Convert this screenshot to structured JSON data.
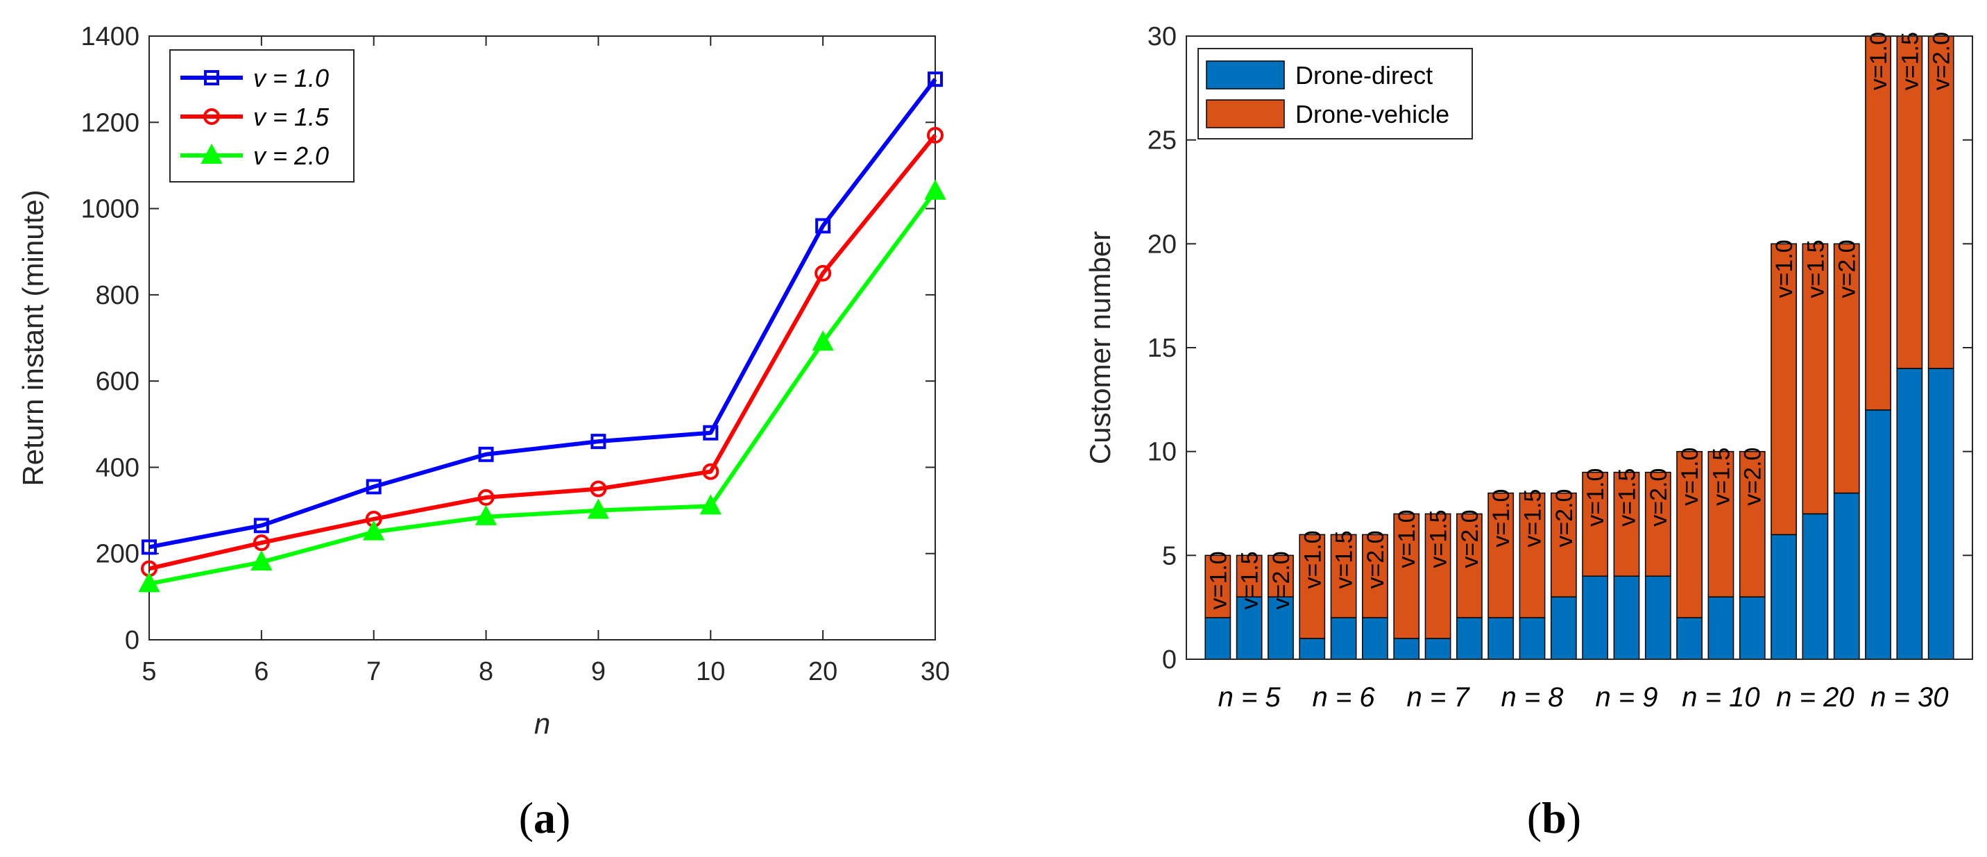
{
  "captions": {
    "a": "a",
    "b": "b"
  },
  "chart_data": [
    {
      "type": "line",
      "panel": "a",
      "title": "",
      "xlabel": "n",
      "ylabel": "Return instant (minute)",
      "categories": [
        "5",
        "6",
        "7",
        "8",
        "9",
        "10",
        "20",
        "30"
      ],
      "ylim": [
        0,
        1400
      ],
      "yticks": [
        "0",
        "200",
        "400",
        "600",
        "800",
        "1000",
        "1200",
        "1400"
      ],
      "ytick_values": [
        0,
        200,
        400,
        600,
        800,
        1000,
        1200,
        1400
      ],
      "legend_position": "top-left",
      "series": [
        {
          "name": "v = 1.0",
          "color": "#0000FF",
          "marker": "square",
          "values": [
            215,
            265,
            355,
            430,
            460,
            480,
            960,
            1300
          ]
        },
        {
          "name": "v = 1.5",
          "color": "#FF0000",
          "marker": "circle",
          "values": [
            165,
            225,
            280,
            330,
            350,
            390,
            850,
            1170
          ]
        },
        {
          "name": "v = 2.0",
          "color": "#00FF00",
          "marker": "triangle",
          "values": [
            130,
            180,
            250,
            285,
            300,
            310,
            690,
            1040
          ]
        }
      ]
    },
    {
      "type": "bar",
      "stacked": true,
      "panel": "b",
      "title": "",
      "xlabel": "",
      "ylabel": "Customer number",
      "ylim": [
        0,
        30
      ],
      "yticks": [
        "0",
        "5",
        "10",
        "15",
        "20",
        "25",
        "30"
      ],
      "ytick_values": [
        0,
        5,
        10,
        15,
        20,
        25,
        30
      ],
      "legend_position": "top-left",
      "groups": [
        "n = 5",
        "n = 6",
        "n = 7",
        "n = 8",
        "n = 9",
        "n = 10",
        "n = 20",
        "n = 30"
      ],
      "bar_labels": [
        "v=1.0",
        "v=1.5",
        "v=2.0"
      ],
      "series": [
        {
          "name": "Drone-direct",
          "color": "#0072BD",
          "values": [
            2,
            3,
            3,
            1,
            2,
            2,
            1,
            1,
            2,
            2,
            2,
            3,
            4,
            4,
            4,
            2,
            3,
            3,
            6,
            7,
            8,
            12,
            14,
            14
          ]
        },
        {
          "name": "Drone-vehicle",
          "color": "#D95319",
          "values": [
            3,
            2,
            2,
            5,
            4,
            4,
            6,
            6,
            5,
            6,
            6,
            5,
            5,
            5,
            5,
            8,
            7,
            7,
            14,
            13,
            12,
            18,
            16,
            16
          ]
        }
      ]
    }
  ]
}
